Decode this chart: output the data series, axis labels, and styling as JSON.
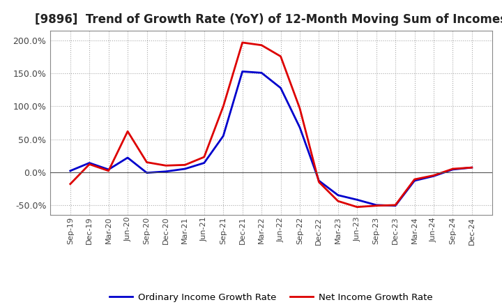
{
  "title": "[9896]  Trend of Growth Rate (YoY) of 12-Month Moving Sum of Incomes",
  "title_fontsize": 12,
  "background_color": "#ffffff",
  "grid_color": "#aaaaaa",
  "ordinary_color": "#0000cc",
  "net_color": "#dd0000",
  "legend_labels": [
    "Ordinary Income Growth Rate",
    "Net Income Growth Rate"
  ],
  "x_labels": [
    "Sep-19",
    "Dec-19",
    "Mar-20",
    "Jun-20",
    "Sep-20",
    "Dec-20",
    "Mar-21",
    "Jun-21",
    "Sep-21",
    "Dec-21",
    "Mar-22",
    "Jun-22",
    "Sep-22",
    "Dec-22",
    "Mar-23",
    "Jun-23",
    "Sep-23",
    "Dec-23",
    "Mar-24",
    "Jun-24",
    "Sep-24",
    "Dec-24"
  ],
  "ordinary": [
    0.02,
    0.14,
    0.04,
    0.22,
    -0.01,
    0.01,
    0.05,
    0.14,
    0.55,
    1.53,
    1.51,
    1.28,
    0.68,
    -0.13,
    -0.35,
    -0.42,
    -0.5,
    -0.51,
    -0.13,
    -0.06,
    0.04,
    0.07
  ],
  "net": [
    -0.18,
    0.12,
    0.02,
    0.62,
    0.15,
    0.1,
    0.11,
    0.23,
    1.0,
    1.97,
    1.93,
    1.76,
    0.97,
    -0.15,
    -0.44,
    -0.53,
    -0.51,
    -0.5,
    -0.11,
    -0.05,
    0.05,
    0.07
  ],
  "yticks": [
    -0.5,
    0.0,
    0.5,
    1.0,
    1.5,
    2.0
  ],
  "ylim": [
    -0.65,
    2.15
  ]
}
